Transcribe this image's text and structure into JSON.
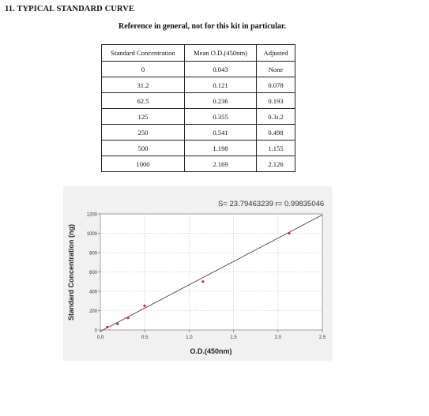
{
  "section_title": "11. TYPICAL STANDARD CURVE",
  "note": "Reference in general, not for this kit in particular.",
  "table": {
    "headers": [
      "Standard Concentration",
      "Mean O.D.(450nm)",
      "Adjusted"
    ],
    "rows": [
      [
        "0",
        "0.043",
        "None"
      ],
      [
        "31.2",
        "0.121",
        "0.078"
      ],
      [
        "62.5",
        "0.236",
        "0.193"
      ],
      [
        "125",
        "0.355",
        "0.3ı.2"
      ],
      [
        "250",
        "0.541",
        "0.498"
      ],
      [
        "500",
        "1.198",
        "1.155"
      ],
      [
        "1000",
        "2.169",
        "2.126"
      ]
    ]
  },
  "chart_data": {
    "type": "scatter",
    "title": "",
    "annotation": "S= 23.79463239  r= 0.99835046",
    "xlabel": "O.D.(450nm)",
    "ylabel": "Standard Concentration (ng)",
    "xlim": [
      0,
      2.5
    ],
    "ylim": [
      0,
      1200
    ],
    "xticks": [
      "0.0",
      "0.5",
      "1.0",
      "1.5",
      "2.0",
      "2.5"
    ],
    "yticks": [
      "0",
      "200",
      "400",
      "600",
      "800",
      "1000",
      "1200"
    ],
    "grid": true,
    "points": [
      {
        "x": 0.078,
        "y": 31.2
      },
      {
        "x": 0.193,
        "y": 62.5
      },
      {
        "x": 0.312,
        "y": 125
      },
      {
        "x": 0.498,
        "y": 250
      },
      {
        "x": 1.155,
        "y": 500
      },
      {
        "x": 2.126,
        "y": 1000
      }
    ],
    "fit_line": {
      "x": [
        0,
        2.5
      ],
      "y": [
        -15,
        1190
      ]
    },
    "colors": {
      "point": "#c0392b",
      "line": "#444444",
      "grid": "#bdbdbd"
    }
  }
}
